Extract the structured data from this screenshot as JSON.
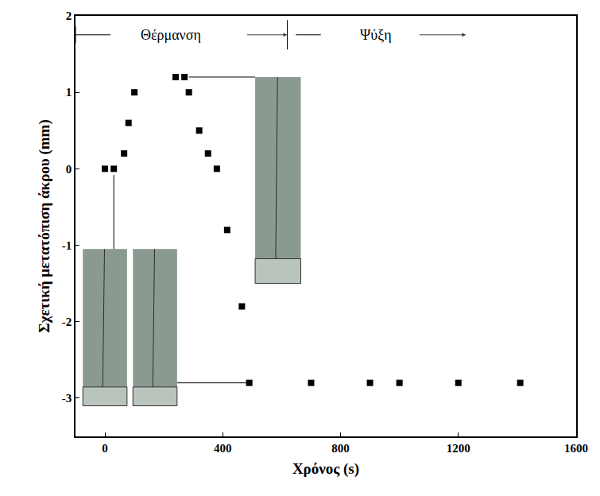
{
  "chart_data": {
    "type": "scatter",
    "marker": "square",
    "color": "#000000",
    "x_label": "Χρόνος (s)",
    "y_label": "Σχετική μετατόπιση άκρου (mm)",
    "annotations": [
      "Θέρμανση",
      "Ψύξη"
    ],
    "x": [
      0,
      30,
      65,
      80,
      100,
      240,
      270,
      285,
      320,
      350,
      380,
      415,
      465,
      490,
      700,
      900,
      1000,
      1200,
      1410
    ],
    "values": [
      0,
      0,
      0.2,
      0.6,
      1.0,
      1.2,
      1.2,
      1.0,
      0.5,
      0.2,
      0,
      -0.8,
      -1.8,
      -2.8,
      -2.8,
      -2.8,
      -2.8,
      -2.8,
      -2.8
    ],
    "xlim": [
      -100,
      1600
    ],
    "xticks": [
      0,
      400,
      800,
      1200,
      1600
    ],
    "ylim": [
      -3.5,
      2
    ],
    "yticks": [
      -3,
      -2,
      -1,
      0,
      1,
      2
    ],
    "grid": false
  }
}
